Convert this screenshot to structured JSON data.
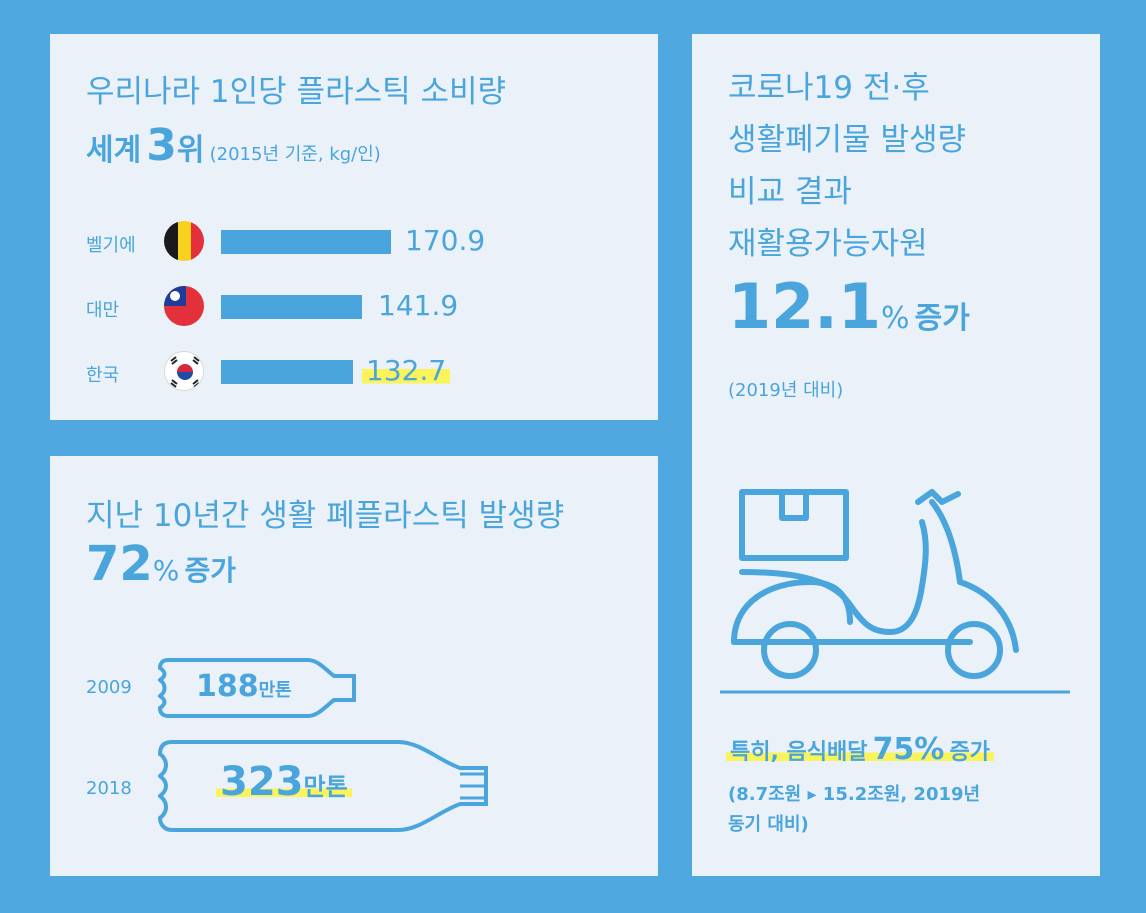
{
  "panel1": {
    "title": "우리나라 1인당 플라스틱 소비량",
    "rank_prefix": "세계",
    "rank_num": "3",
    "rank_suffix": "위",
    "rank_note": "(2015년 기준, kg/인)",
    "rows": [
      {
        "country": "벨기에",
        "value": "170.9",
        "ratio": 1.0,
        "flag": "belgium-flag-icon"
      },
      {
        "country": "대만",
        "value": "141.9",
        "ratio": 0.83,
        "flag": "taiwan-flag-icon"
      },
      {
        "country": "한국",
        "value": "132.7",
        "ratio": 0.776,
        "flag": "korea-flag-icon",
        "highlight": true
      }
    ]
  },
  "panel2": {
    "title": "지난 10년간 생활 폐플라스틱 발생량",
    "big_num": "72",
    "big_unit": "%",
    "big_suffix": "증가",
    "bottles": [
      {
        "year": "2009",
        "value": "188",
        "unit": "만톤"
      },
      {
        "year": "2018",
        "value": "323",
        "unit": "만톤",
        "highlight": true
      }
    ]
  },
  "panel3": {
    "title_line1": "코로나19 전·후",
    "title_line2": "생활폐기물 발생량",
    "title_line3": "비교 결과",
    "title_line4": "재활용가능자원",
    "big_num": "12.1",
    "big_unit": "%",
    "big_suffix": "증가",
    "note": "(2019년 대비)",
    "highlight_text": "특히, 음식배달",
    "highlight_num": "75%",
    "highlight_suffix": "증가",
    "detail_line1": "(8.7조원 ▸ 15.2조원, 2019년",
    "detail_line2": "동기 대비)"
  },
  "colors": {
    "background": "#4fa8e0",
    "panel": "#eaf1f8",
    "accent": "#4aa5dc",
    "highlight": "#fbf35a"
  }
}
